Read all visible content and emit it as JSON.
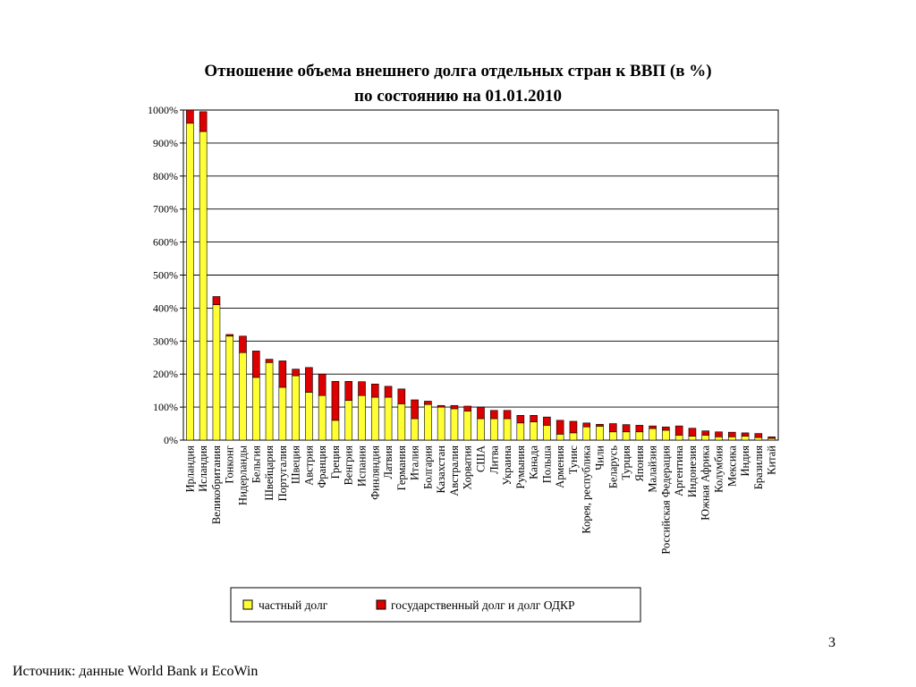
{
  "chart_data": {
    "type": "bar",
    "stacked": true,
    "title": "Отношение объема внешнего долга отдельных стран к ВВП (в %)",
    "subtitle": "по состоянию на 01.01.2010",
    "ylim": [
      0,
      1000
    ],
    "yticks": [
      "0%",
      "100%",
      "200%",
      "300%",
      "400%",
      "500%",
      "600%",
      "700%",
      "800%",
      "900%",
      "1000%"
    ],
    "grid": true,
    "legend_position": "bottom",
    "categories": [
      "Ирландия",
      "Исландия",
      "Великобритания",
      "Гонконг",
      "Нидерланды",
      "Бельгия",
      "Швейцария",
      "Португалия",
      "Швеция",
      "Австрия",
      "Франция",
      "Греция",
      "Венгрия",
      "Испания",
      "Финляндия",
      "Латвия",
      "Германия",
      "Италия",
      "Болгария",
      "Казахстан",
      "Австралия",
      "Хорватия",
      "США",
      "Литва",
      "Украина",
      "Румыния",
      "Канада",
      "Польша",
      "Армения",
      "Тунис",
      "Корея, республика",
      "Чили",
      "Беларусь",
      "Турция",
      "Япония",
      "Малайзия",
      "Российская Федерация",
      "Аргентина",
      "Индонезия",
      "Южная Африка",
      "Колумбия",
      "Мексика",
      "Индия",
      "Бразилия",
      "Китай"
    ],
    "series": [
      {
        "name": "частный долг",
        "color": "#ffff33",
        "values": [
          960,
          935,
          410,
          315,
          265,
          190,
          235,
          160,
          195,
          145,
          135,
          60,
          120,
          135,
          130,
          130,
          110,
          65,
          108,
          100,
          95,
          88,
          65,
          65,
          65,
          52,
          55,
          45,
          18,
          22,
          40,
          42,
          25,
          25,
          25,
          35,
          30,
          15,
          12,
          15,
          10,
          10,
          12,
          8,
          5
        ]
      },
      {
        "name": "государственный долг и долг ОДКР",
        "color": "#dd0000",
        "values": [
          40,
          60,
          25,
          5,
          50,
          80,
          10,
          80,
          20,
          75,
          65,
          118,
          58,
          42,
          40,
          33,
          45,
          57,
          10,
          5,
          10,
          15,
          35,
          25,
          25,
          23,
          20,
          25,
          42,
          35,
          12,
          6,
          25,
          22,
          20,
          8,
          10,
          28,
          24,
          13,
          15,
          14,
          10,
          12,
          5
        ]
      }
    ]
  },
  "page_number": "3",
  "source": "Источник: данные World Bank и EcoWin"
}
